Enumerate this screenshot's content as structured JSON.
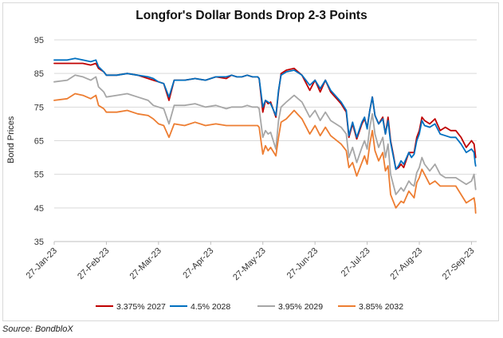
{
  "chart_data": {
    "type": "line",
    "title": "Longfor's Dollar Bonds Drop 2-3 Points",
    "xlabel": "",
    "ylabel": "Bond Prices",
    "ylim": [
      35,
      95
    ],
    "yticks": [
      35,
      45,
      55,
      65,
      75,
      85,
      95
    ],
    "xticks": [
      "27-Jan-23",
      "27-Feb-23",
      "27-Mar-23",
      "27-Apr-23",
      "27-May-23",
      "27-Jun-23",
      "27-Jul-23",
      "27-Aug-23",
      "27-Sep-23"
    ],
    "xdomain": [
      0,
      8.1
    ],
    "grid": true,
    "legend_position": "bottom",
    "series": [
      {
        "name": "3.375% 2027",
        "color": "#c00000",
        "x": [
          0,
          0.25,
          0.4,
          0.55,
          0.7,
          0.8,
          0.85,
          0.95,
          1.0,
          1.2,
          1.4,
          1.6,
          1.8,
          1.9,
          2.0,
          2.1,
          2.2,
          2.3,
          2.5,
          2.7,
          2.9,
          3.1,
          3.3,
          3.4,
          3.5,
          3.6,
          3.7,
          3.8,
          3.9,
          3.93,
          4.0,
          4.05,
          4.1,
          4.15,
          4.25,
          4.3,
          4.35,
          4.45,
          4.6,
          4.75,
          4.9,
          5.0,
          5.1,
          5.2,
          5.3,
          5.5,
          5.6,
          5.65,
          5.72,
          5.8,
          5.9,
          5.95,
          6.0,
          6.05,
          6.1,
          6.15,
          6.22,
          6.3,
          6.35,
          6.4,
          6.45,
          6.5,
          6.55,
          6.6,
          6.65,
          6.7,
          6.8,
          6.85,
          6.9,
          6.95,
          7.0,
          7.05,
          7.1,
          7.2,
          7.3,
          7.4,
          7.5,
          7.6,
          7.7,
          7.8,
          7.9,
          8.0,
          8.05,
          8.07,
          8.08
        ],
        "values": [
          88,
          88,
          88,
          88,
          87.5,
          88,
          86.5,
          85.5,
          84.5,
          84.5,
          85,
          84.5,
          83.5,
          83,
          82.5,
          82,
          77,
          83,
          83,
          83.5,
          83,
          84,
          83.5,
          84.5,
          84,
          84,
          84.5,
          84,
          84,
          83.5,
          73.5,
          77,
          76,
          76.5,
          72,
          79.5,
          85,
          86,
          86.5,
          84.5,
          80,
          83,
          79.5,
          83,
          79.5,
          76,
          73.5,
          66,
          70,
          65.5,
          70,
          71.5,
          69,
          74,
          78,
          72.5,
          70,
          72,
          67,
          72,
          65,
          61,
          56.5,
          57,
          58,
          57,
          61.5,
          61.5,
          61.5,
          66,
          68,
          72,
          71,
          70,
          71.5,
          68,
          69,
          68,
          68,
          66,
          63,
          65,
          64,
          61.5,
          60
        ]
      },
      {
        "name": "4.5% 2028",
        "color": "#0070c0",
        "x": [
          0,
          0.25,
          0.4,
          0.55,
          0.7,
          0.8,
          0.85,
          0.95,
          1.0,
          1.2,
          1.4,
          1.6,
          1.8,
          1.9,
          2.0,
          2.1,
          2.2,
          2.3,
          2.5,
          2.7,
          2.9,
          3.1,
          3.3,
          3.4,
          3.5,
          3.6,
          3.7,
          3.8,
          3.9,
          3.93,
          4.0,
          4.05,
          4.1,
          4.15,
          4.25,
          4.3,
          4.35,
          4.45,
          4.6,
          4.75,
          4.9,
          5.0,
          5.1,
          5.2,
          5.3,
          5.5,
          5.6,
          5.65,
          5.72,
          5.8,
          5.9,
          5.95,
          6.0,
          6.05,
          6.1,
          6.15,
          6.22,
          6.3,
          6.35,
          6.4,
          6.45,
          6.5,
          6.55,
          6.6,
          6.65,
          6.7,
          6.8,
          6.85,
          6.9,
          6.95,
          7.0,
          7.05,
          7.1,
          7.2,
          7.3,
          7.4,
          7.5,
          7.6,
          7.7,
          7.8,
          7.9,
          8.0,
          8.05,
          8.07,
          8.08
        ],
        "values": [
          89,
          89,
          89.5,
          89,
          88.5,
          89,
          87,
          85.5,
          84.5,
          84.5,
          85,
          84.5,
          84,
          83.5,
          82.5,
          82,
          78,
          83,
          83,
          83.5,
          83,
          84,
          84,
          84.5,
          84,
          84,
          84.5,
          84,
          84,
          83.5,
          75,
          77,
          76.5,
          76,
          72.5,
          80,
          84.5,
          85.5,
          86,
          84.5,
          81.5,
          83,
          80.5,
          83,
          80,
          76.5,
          74,
          66.5,
          70.5,
          66,
          70.5,
          72,
          68.5,
          74,
          78,
          72.5,
          70,
          71.5,
          67,
          71,
          64.5,
          60.5,
          56.5,
          57.5,
          59,
          58,
          61.5,
          60,
          61,
          65,
          67,
          71,
          69.5,
          69,
          70,
          67,
          66.5,
          66,
          66,
          64,
          61.5,
          62.5,
          61.5,
          58.5,
          57.5
        ]
      },
      {
        "name": "3.95% 2029",
        "color": "#a6a6a6",
        "x": [
          0,
          0.25,
          0.4,
          0.55,
          0.7,
          0.8,
          0.85,
          0.95,
          1.0,
          1.2,
          1.4,
          1.6,
          1.8,
          1.9,
          2.0,
          2.1,
          2.2,
          2.3,
          2.5,
          2.7,
          2.9,
          3.1,
          3.3,
          3.4,
          3.5,
          3.6,
          3.7,
          3.8,
          3.9,
          3.93,
          4.0,
          4.05,
          4.1,
          4.15,
          4.25,
          4.3,
          4.35,
          4.45,
          4.6,
          4.75,
          4.9,
          5.0,
          5.1,
          5.2,
          5.3,
          5.5,
          5.6,
          5.65,
          5.72,
          5.8,
          5.9,
          5.95,
          6.0,
          6.05,
          6.1,
          6.15,
          6.22,
          6.3,
          6.35,
          6.4,
          6.45,
          6.5,
          6.55,
          6.6,
          6.65,
          6.7,
          6.8,
          6.85,
          6.9,
          6.95,
          7.0,
          7.05,
          7.1,
          7.2,
          7.3,
          7.4,
          7.5,
          7.6,
          7.7,
          7.8,
          7.9,
          8.0,
          8.05,
          8.07,
          8.08
        ],
        "values": [
          82.5,
          83,
          84.5,
          84,
          83,
          84,
          81,
          79.5,
          78,
          78.5,
          79,
          78,
          77,
          75.5,
          75,
          74.5,
          70,
          75.5,
          75.5,
          76,
          75,
          75.5,
          74.5,
          75,
          75,
          75,
          75.5,
          75,
          75,
          74.5,
          66,
          68,
          67,
          67.5,
          62.5,
          71,
          75,
          76.5,
          78.5,
          76.5,
          72,
          74,
          71,
          73.5,
          71,
          69,
          67,
          60,
          63,
          58.5,
          63,
          65,
          62.5,
          69,
          73,
          67,
          63,
          66,
          60,
          64,
          55,
          52,
          49,
          50,
          51,
          50,
          53,
          52,
          51.5,
          55.5,
          57,
          60,
          58,
          56,
          58,
          55,
          54,
          54,
          54,
          53,
          52,
          53,
          55,
          52,
          50.5
        ]
      },
      {
        "name": "3.85% 2032",
        "color": "#ed7d31",
        "x": [
          0,
          0.25,
          0.4,
          0.55,
          0.7,
          0.8,
          0.85,
          0.95,
          1.0,
          1.2,
          1.4,
          1.6,
          1.8,
          1.9,
          2.0,
          2.1,
          2.2,
          2.3,
          2.5,
          2.7,
          2.9,
          3.1,
          3.3,
          3.4,
          3.5,
          3.6,
          3.7,
          3.8,
          3.9,
          3.93,
          4.0,
          4.05,
          4.1,
          4.15,
          4.25,
          4.3,
          4.35,
          4.45,
          4.6,
          4.75,
          4.9,
          5.0,
          5.1,
          5.2,
          5.3,
          5.5,
          5.6,
          5.65,
          5.72,
          5.8,
          5.9,
          5.95,
          6.0,
          6.05,
          6.1,
          6.15,
          6.22,
          6.3,
          6.35,
          6.4,
          6.45,
          6.5,
          6.55,
          6.6,
          6.65,
          6.7,
          6.8,
          6.85,
          6.9,
          6.95,
          7.0,
          7.05,
          7.1,
          7.2,
          7.3,
          7.4,
          7.5,
          7.6,
          7.7,
          7.8,
          7.9,
          8.0,
          8.05,
          8.07,
          8.08
        ],
        "values": [
          77,
          77.5,
          79,
          78.5,
          77.5,
          78.5,
          75.5,
          74.5,
          73.5,
          73.5,
          74,
          73,
          72.5,
          71.5,
          70,
          69.5,
          66,
          70,
          69.5,
          70.5,
          69.5,
          70,
          69.5,
          69.5,
          69.5,
          69.5,
          69.5,
          69.5,
          69.5,
          69,
          61,
          63.5,
          62,
          63,
          60.5,
          66,
          70.5,
          71.5,
          74,
          71.5,
          67,
          69.5,
          66.5,
          69,
          66.5,
          64,
          62,
          57,
          58.5,
          54.5,
          58.5,
          60.5,
          58,
          64,
          68,
          62,
          59,
          61.5,
          56,
          57.5,
          49,
          47,
          45,
          46,
          47,
          46.5,
          50,
          49,
          48,
          52.5,
          54,
          56.5,
          55,
          52,
          53,
          51.5,
          51.5,
          51.5,
          51.5,
          49,
          46.5,
          47.5,
          48,
          46,
          43.5
        ]
      }
    ]
  }
}
